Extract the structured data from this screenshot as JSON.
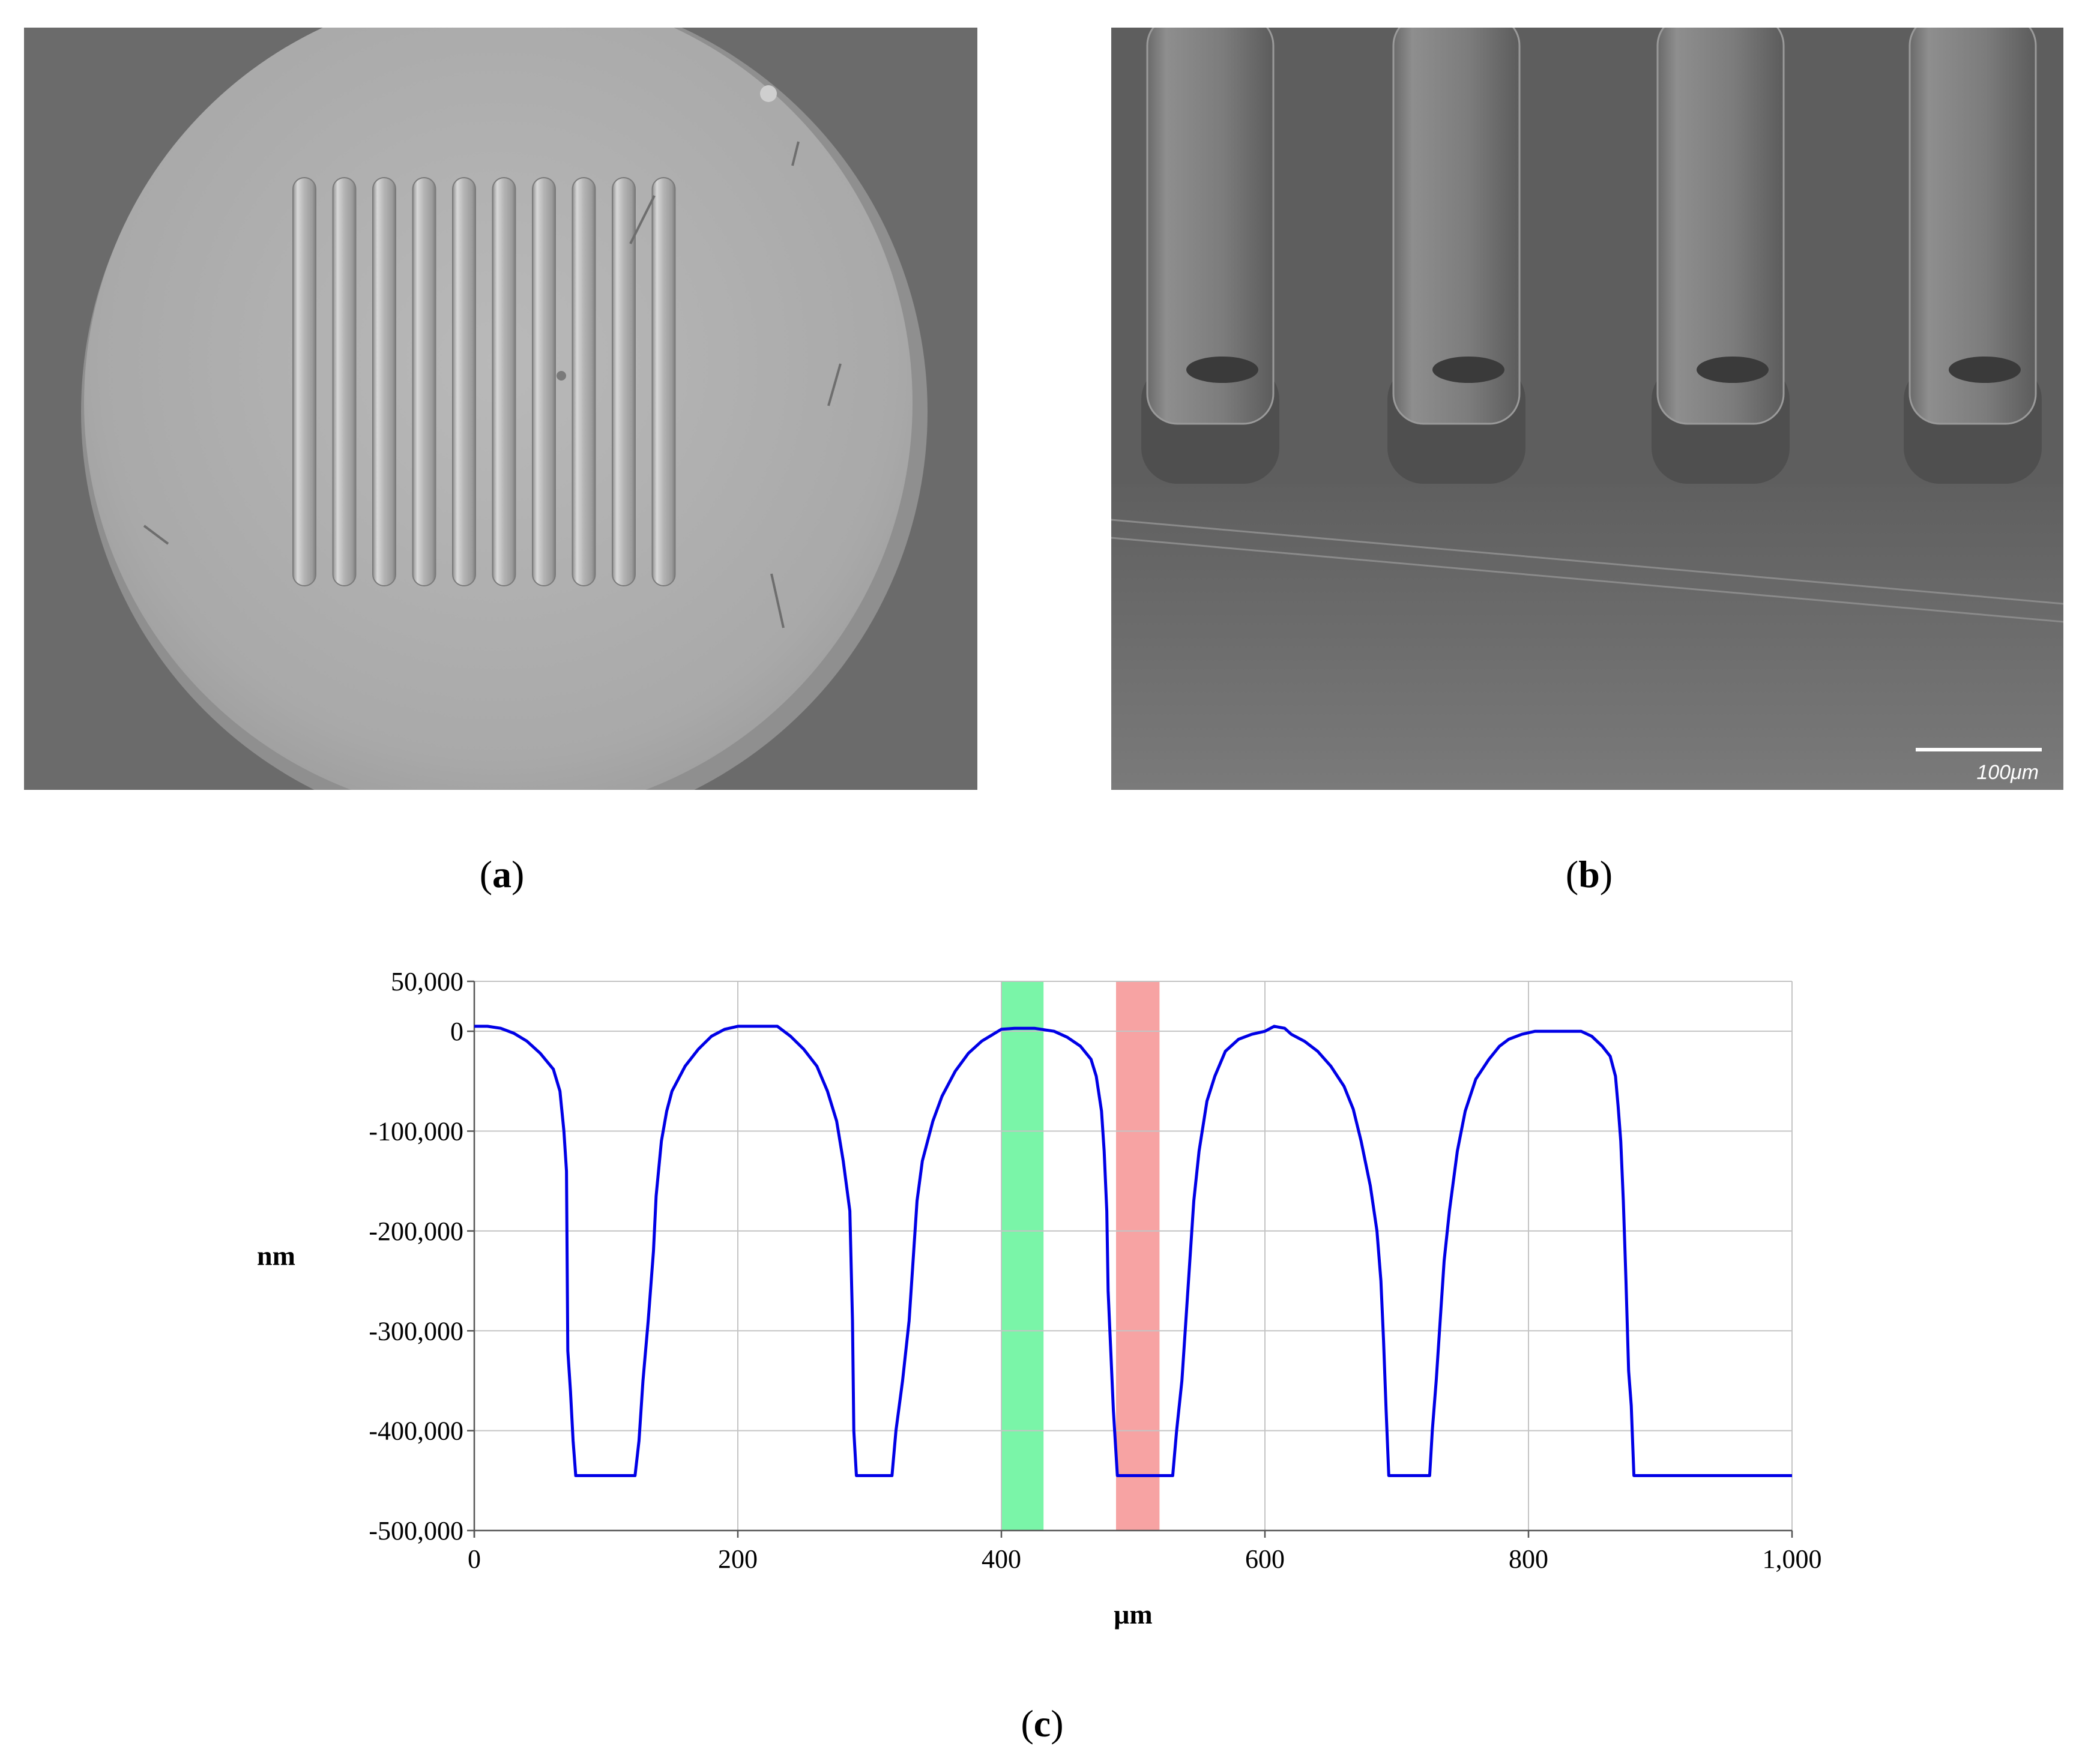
{
  "panels": {
    "a": {
      "caption_open": "(",
      "caption_letter": "a",
      "caption_close": ")"
    },
    "b": {
      "caption_open": "(",
      "caption_letter": "b",
      "caption_close": ")",
      "scale_bar_label": "100μm"
    },
    "c": {
      "caption_open": "(",
      "caption_letter": "c",
      "caption_close": ")"
    }
  },
  "chart_data": {
    "type": "line",
    "xlabel": "μm",
    "ylabel": "nm",
    "xlim": [
      0,
      1000
    ],
    "ylim": [
      -500000,
      50000
    ],
    "x_ticks": [
      0,
      200,
      400,
      600,
      800,
      1000
    ],
    "x_tick_labels": [
      "0",
      "200",
      "400",
      "600",
      "800",
      "1,000"
    ],
    "y_ticks": [
      50000,
      0,
      -100000,
      -200000,
      -300000,
      -400000,
      -500000
    ],
    "y_tick_labels": [
      "50,000",
      "0",
      "-100,000",
      "-200,000",
      "-300,000",
      "-400,000",
      "-500,000"
    ],
    "grid": true,
    "line_color": "#0000e6",
    "highlight_bands": [
      {
        "x_start": 400,
        "x_end": 432,
        "color": "#7af5a8"
      },
      {
        "x_start": 487,
        "x_end": 520,
        "color": "#f7a3a3"
      }
    ],
    "series": [
      {
        "values": [
          [
            0,
            5000
          ],
          [
            10,
            5000
          ],
          [
            20,
            3000
          ],
          [
            30,
            -2000
          ],
          [
            40,
            -10000
          ],
          [
            50,
            -22000
          ],
          [
            60,
            -38000
          ],
          [
            65,
            -60000
          ],
          [
            68,
            -100000
          ],
          [
            70,
            -140000
          ],
          [
            71,
            -320000
          ],
          [
            73,
            -360000
          ],
          [
            75,
            -410000
          ],
          [
            77,
            -445000
          ],
          [
            100,
            -445000
          ],
          [
            122,
            -445000
          ],
          [
            125,
            -410000
          ],
          [
            128,
            -350000
          ],
          [
            132,
            -290000
          ],
          [
            136,
            -220000
          ],
          [
            138,
            -165000
          ],
          [
            142,
            -110000
          ],
          [
            146,
            -80000
          ],
          [
            150,
            -60000
          ],
          [
            160,
            -35000
          ],
          [
            170,
            -18000
          ],
          [
            180,
            -5000
          ],
          [
            190,
            2000
          ],
          [
            200,
            5000
          ],
          [
            215,
            5000
          ],
          [
            230,
            5000
          ],
          [
            240,
            -5000
          ],
          [
            250,
            -18000
          ],
          [
            260,
            -35000
          ],
          [
            268,
            -60000
          ],
          [
            275,
            -90000
          ],
          [
            280,
            -130000
          ],
          [
            285,
            -180000
          ],
          [
            287,
            -290000
          ],
          [
            288,
            -400000
          ],
          [
            290,
            -445000
          ],
          [
            300,
            -445000
          ],
          [
            317,
            -445000
          ],
          [
            320,
            -400000
          ],
          [
            325,
            -350000
          ],
          [
            330,
            -290000
          ],
          [
            333,
            -230000
          ],
          [
            336,
            -170000
          ],
          [
            340,
            -130000
          ],
          [
            348,
            -90000
          ],
          [
            355,
            -65000
          ],
          [
            365,
            -40000
          ],
          [
            375,
            -22000
          ],
          [
            385,
            -10000
          ],
          [
            395,
            -2000
          ],
          [
            400,
            2000
          ],
          [
            410,
            3000
          ],
          [
            425,
            3000
          ],
          [
            440,
            0
          ],
          [
            450,
            -6000
          ],
          [
            460,
            -15000
          ],
          [
            468,
            -28000
          ],
          [
            472,
            -45000
          ],
          [
            476,
            -80000
          ],
          [
            478,
            -120000
          ],
          [
            480,
            -180000
          ],
          [
            481,
            -260000
          ],
          [
            483,
            -320000
          ],
          [
            485,
            -380000
          ],
          [
            488,
            -445000
          ],
          [
            500,
            -445000
          ],
          [
            530,
            -445000
          ],
          [
            533,
            -400000
          ],
          [
            537,
            -350000
          ],
          [
            540,
            -290000
          ],
          [
            543,
            -230000
          ],
          [
            546,
            -170000
          ],
          [
            550,
            -120000
          ],
          [
            556,
            -70000
          ],
          [
            562,
            -45000
          ],
          [
            570,
            -20000
          ],
          [
            580,
            -8000
          ],
          [
            590,
            -3000
          ],
          [
            600,
            0
          ],
          [
            607,
            5000
          ],
          [
            615,
            3000
          ],
          [
            620,
            -3000
          ],
          [
            630,
            -10000
          ],
          [
            640,
            -20000
          ],
          [
            650,
            -35000
          ],
          [
            660,
            -55000
          ],
          [
            667,
            -78000
          ],
          [
            673,
            -110000
          ],
          [
            680,
            -155000
          ],
          [
            685,
            -200000
          ],
          [
            688,
            -250000
          ],
          [
            690,
            -310000
          ],
          [
            692,
            -380000
          ],
          [
            694,
            -445000
          ],
          [
            710,
            -445000
          ],
          [
            725,
            -445000
          ],
          [
            727,
            -400000
          ],
          [
            730,
            -350000
          ],
          [
            733,
            -290000
          ],
          [
            736,
            -230000
          ],
          [
            740,
            -180000
          ],
          [
            746,
            -120000
          ],
          [
            752,
            -80000
          ],
          [
            760,
            -48000
          ],
          [
            770,
            -28000
          ],
          [
            778,
            -15000
          ],
          [
            785,
            -8000
          ],
          [
            795,
            -3000
          ],
          [
            805,
            0
          ],
          [
            825,
            0
          ],
          [
            840,
            0
          ],
          [
            848,
            -5000
          ],
          [
            856,
            -15000
          ],
          [
            862,
            -25000
          ],
          [
            866,
            -45000
          ],
          [
            868,
            -75000
          ],
          [
            870,
            -110000
          ],
          [
            872,
            -170000
          ],
          [
            874,
            -250000
          ],
          [
            876,
            -340000
          ],
          [
            878,
            -375000
          ],
          [
            880,
            -445000
          ],
          [
            890,
            -445000
          ],
          [
            950,
            -445000
          ],
          [
            1000,
            -445000
          ]
        ]
      }
    ]
  }
}
